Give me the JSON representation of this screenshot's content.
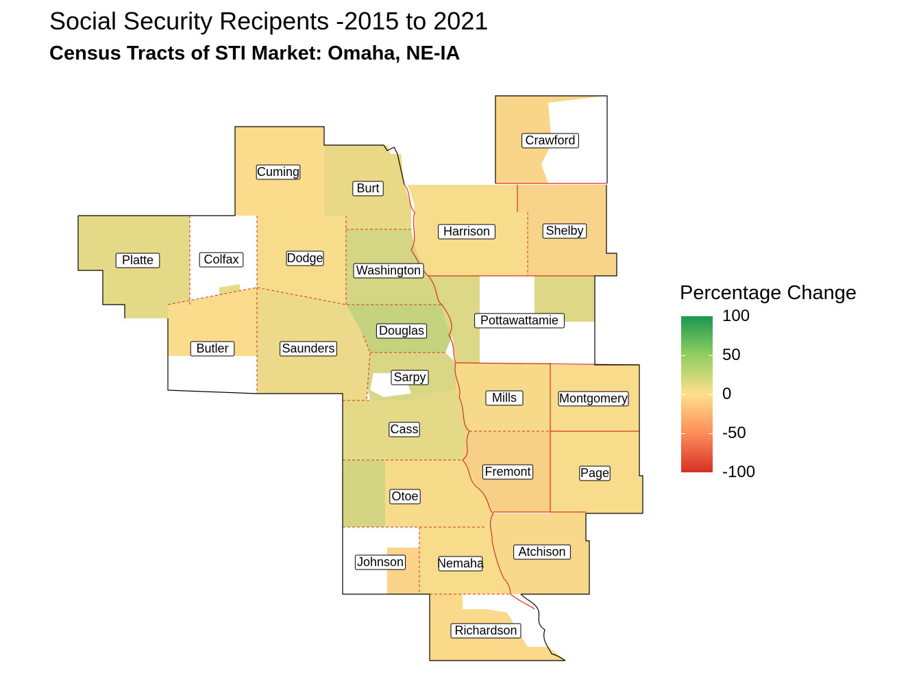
{
  "title": "Social Security Recipents -2015 to 2021",
  "subtitle": "Census Tracts of STI Market: Omaha, NE-IA",
  "legend": {
    "title": "Percentage Change",
    "ticks": [
      "100",
      "50",
      "0",
      "-50",
      "-100"
    ],
    "colors": {
      "high": "#1a9850",
      "mid_high": "#91cf60",
      "mid": "#fee08b",
      "mid_low": "#fc8d59",
      "low": "#d73027"
    }
  },
  "colors": {
    "state_border": "#d7301f",
    "county_border": "#d7301f",
    "outline": "#000000",
    "no_data": "#ffffff"
  },
  "counties": [
    {
      "name": "Crawford",
      "value": -15
    },
    {
      "name": "Cuming",
      "value": -8
    },
    {
      "name": "Burt",
      "value": 12
    },
    {
      "name": "Harrison",
      "value": 3
    },
    {
      "name": "Shelby",
      "value": -5
    },
    {
      "name": "Platte",
      "value": 15
    },
    {
      "name": "Colfax",
      "value": null
    },
    {
      "name": "Dodge",
      "value": 2
    },
    {
      "name": "Washington",
      "value": 18
    },
    {
      "name": "Pottawattamie",
      "value": 10
    },
    {
      "name": "Douglas",
      "value": 25
    },
    {
      "name": "Butler",
      "value": 0
    },
    {
      "name": "Saunders",
      "value": 8
    },
    {
      "name": "Sarpy",
      "value": 20
    },
    {
      "name": "Mills",
      "value": 2
    },
    {
      "name": "Montgomery",
      "value": 0
    },
    {
      "name": "Cass",
      "value": 10
    },
    {
      "name": "Fremont",
      "value": -10
    },
    {
      "name": "Page",
      "value": 2
    },
    {
      "name": "Otoe",
      "value": 4
    },
    {
      "name": "Johnson",
      "value": null
    },
    {
      "name": "Nemaha",
      "value": 2
    },
    {
      "name": "Atchison",
      "value": -3
    },
    {
      "name": "Richardson",
      "value": -2
    }
  ]
}
